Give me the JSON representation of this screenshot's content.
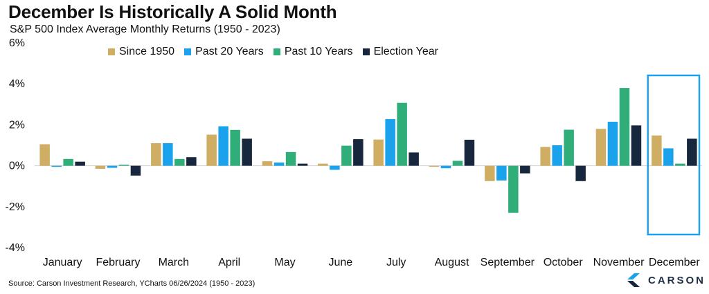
{
  "title": "December Is Historically A Solid Month",
  "subtitle": "S&P 500 Index Average Monthly Returns (1950 - 2023)",
  "source": "Source: Carson Investment Research, YCharts 06/26/2024 (1950 - 2023)",
  "logo_text": "CARSON",
  "colors": {
    "since_1950": "#cfae63",
    "past_20": "#1aa3ec",
    "past_10": "#2fae7a",
    "election": "#17273d",
    "highlight": "#1aa3ec"
  },
  "chart_data": {
    "type": "bar",
    "title": "December Is Historically A Solid Month",
    "subtitle": "S&P 500 Index Average Monthly Returns (1950 - 2023)",
    "ylim": [
      -4,
      6
    ],
    "yticks": [
      "6%",
      "4%",
      "2%",
      "0%",
      "-2%",
      "-4%"
    ],
    "grid": false,
    "legend_position": "top",
    "categories": [
      "January",
      "February",
      "March",
      "April",
      "May",
      "June",
      "July",
      "August",
      "September",
      "October",
      "November",
      "December"
    ],
    "series": [
      {
        "name": "Since 1950",
        "values": [
          1.05,
          -0.15,
          1.1,
          1.52,
          0.22,
          0.1,
          1.28,
          -0.05,
          -0.75,
          0.92,
          1.8,
          1.48
        ]
      },
      {
        "name": "Past 20 Years",
        "values": [
          0.0,
          -0.1,
          1.1,
          1.93,
          0.16,
          -0.2,
          2.28,
          -0.12,
          -0.72,
          1.0,
          2.15,
          0.85
        ]
      },
      {
        "name": "Past 10 Years",
        "values": [
          0.33,
          0.05,
          0.33,
          1.75,
          0.67,
          0.98,
          3.07,
          0.24,
          -2.3,
          1.76,
          3.8,
          0.1
        ]
      },
      {
        "name": "Election Year",
        "values": [
          0.2,
          -0.48,
          0.42,
          1.32,
          0.1,
          1.3,
          0.65,
          1.27,
          -0.37,
          -0.75,
          1.97,
          1.32
        ]
      }
    ],
    "highlight_category": "December"
  }
}
